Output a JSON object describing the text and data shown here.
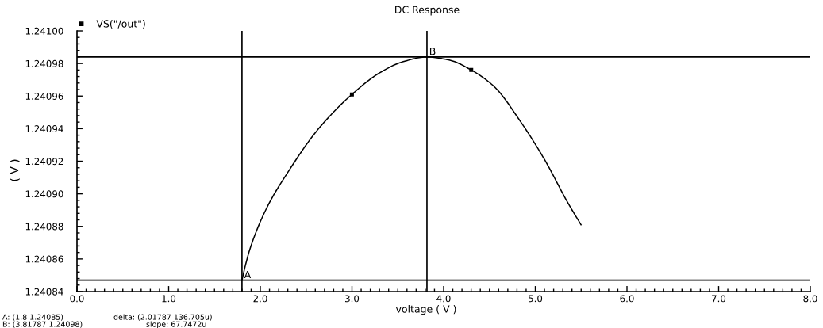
{
  "chart_data": {
    "type": "line",
    "title": "DC Response",
    "xlabel": "voltage ( V )",
    "ylabel": "( V )",
    "xlim": [
      0,
      8
    ],
    "xticks": [
      {
        "value": 0,
        "label": "0.0"
      },
      {
        "value": 1,
        "label": "1.0"
      },
      {
        "value": 2,
        "label": "2.0"
      },
      {
        "value": 3,
        "label": "3.0"
      },
      {
        "value": 4,
        "label": "4.0"
      },
      {
        "value": 5,
        "label": "5.0"
      },
      {
        "value": 6,
        "label": "6.0"
      },
      {
        "value": 7,
        "label": "7.0"
      },
      {
        "value": 8,
        "label": "8.0"
      }
    ],
    "ylim": [
      1.24084,
      1.241
    ],
    "yticks": [
      1.24084,
      1.24086,
      1.24088,
      {
        "value": 1.2409,
        "label": "1.24090"
      },
      1.24092,
      1.24094,
      1.24096,
      1.24098,
      {
        "value": 1.241,
        "label": "1.24100"
      }
    ],
    "series": [
      {
        "name": "VS(\"/out\")",
        "color": "#000000",
        "x": [
          1.8,
          1.837,
          1.892,
          2.076,
          2.298,
          2.593,
          2.796,
          2.999,
          3.294,
          3.552,
          3.81787,
          4.068,
          4.301,
          4.548,
          4.843,
          5.101,
          5.36,
          5.499
        ],
        "values": [
          1.240847,
          1.240856,
          1.240867,
          1.240892,
          1.240913,
          1.240937,
          1.24095,
          1.240961,
          1.240974,
          1.240981,
          1.240984,
          1.240982,
          1.240976,
          1.240966,
          1.240944,
          1.240921,
          1.240894,
          1.240881
        ]
      }
    ],
    "line_style": "solid",
    "legend": "top left",
    "grid": false,
    "ref_lines": [
      {
        "axis": "x",
        "value": 1.8,
        "color": "#000000"
      },
      {
        "axis": "y",
        "value": 1.240847,
        "color": "#000000"
      },
      {
        "axis": "x",
        "value": 3.81787,
        "color": "#000000"
      },
      {
        "axis": "y",
        "value": 1.240984,
        "color": "#000000"
      }
    ],
    "annotations": [
      {
        "text": "A",
        "x": 1.8,
        "y": 1.240847
      },
      {
        "text": "B",
        "x": 3.81787,
        "y": 1.240984
      },
      "A: (1.8 1.24085)",
      "delta: (2.01787 136.705u)",
      "B: (3.81787 1.24098)",
      "slope: 67.7472u"
    ]
  }
}
